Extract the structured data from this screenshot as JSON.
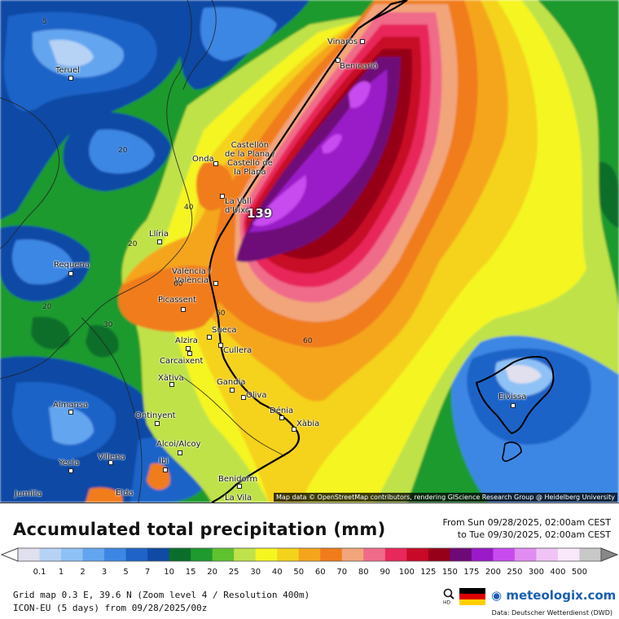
{
  "map": {
    "cities": [
      {
        "name": "Vinaròs"
      },
      {
        "name": "Benicarló"
      },
      {
        "name": "Teruel"
      },
      {
        "name": "Castellón\nde la Plana /\nCastelló de\nla Plana"
      },
      {
        "name": "Onda"
      },
      {
        "name": "La Vall\nd'Uixó"
      },
      {
        "name": "Llíria"
      },
      {
        "name": "Requena"
      },
      {
        "name": "València /\nValència"
      },
      {
        "name": "Picassent"
      },
      {
        "name": "Sueca"
      },
      {
        "name": "Alzira"
      },
      {
        "name": "Cullera"
      },
      {
        "name": "Carcaixent"
      },
      {
        "name": "Xàtiva"
      },
      {
        "name": "Gandia"
      },
      {
        "name": "Oliva"
      },
      {
        "name": "Almansa"
      },
      {
        "name": "Ontinyent"
      },
      {
        "name": "Dénia"
      },
      {
        "name": "Xàbia"
      },
      {
        "name": "Alcoi/Alcoy"
      },
      {
        "name": "Villena"
      },
      {
        "name": "Yecla"
      },
      {
        "name": "Ibi"
      },
      {
        "name": "Eivissa"
      },
      {
        "name": "Benidorm"
      },
      {
        "name": "Jumilla"
      },
      {
        "name": "Elda"
      },
      {
        "name": "La Vila"
      }
    ],
    "contour_labels": [
      "5",
      "20",
      "40",
      "20",
      "20",
      "60",
      "60",
      "60",
      "30"
    ],
    "max_value": "139",
    "attribution": "Map data © OpenStreetMap contributors, rendering GIScience Research Group @ Heidelberg University"
  },
  "header": {
    "title": "Accumulated total precipitation (mm)",
    "period_from": "From Sun 09/28/2025, 02:00am CEST",
    "period_to": "to Tue 09/30/2025, 02:00am CEST"
  },
  "legend": {
    "ticks": [
      "0.1",
      "1",
      "2",
      "3",
      "5",
      "7",
      "10",
      "15",
      "20",
      "25",
      "30",
      "40",
      "50",
      "60",
      "70",
      "80",
      "90",
      "100",
      "125",
      "150",
      "175",
      "200",
      "250",
      "300",
      "400",
      "500"
    ],
    "colors": [
      "#e0e0ee",
      "#b6d2f5",
      "#8ec1f5",
      "#63a5ef",
      "#3c87e4",
      "#1f63c8",
      "#0f4aa5",
      "#0a6e2a",
      "#1e9a2e",
      "#5fc22f",
      "#bfe24a",
      "#f5f520",
      "#f5d21c",
      "#f5a51c",
      "#f07c1c",
      "#f2a57a",
      "#f06a8a",
      "#e8285a",
      "#c80a28",
      "#960018",
      "#6e0a78",
      "#9a1ac8",
      "#c84bf0",
      "#e08cf0",
      "#f0c4f5",
      "#f8e8fa",
      "#c8c8c8"
    ]
  },
  "footer": {
    "grid": "Grid map 0.3 E, 39.6 N (Zoom level 4 / Resolution 400m)",
    "model": "ICON-EU (5 days) from 09/28/2025/00z",
    "brand": "meteologix.com",
    "zoom_label": "HD",
    "source": "Data: Deutscher Wetterdienst (DWD)"
  }
}
